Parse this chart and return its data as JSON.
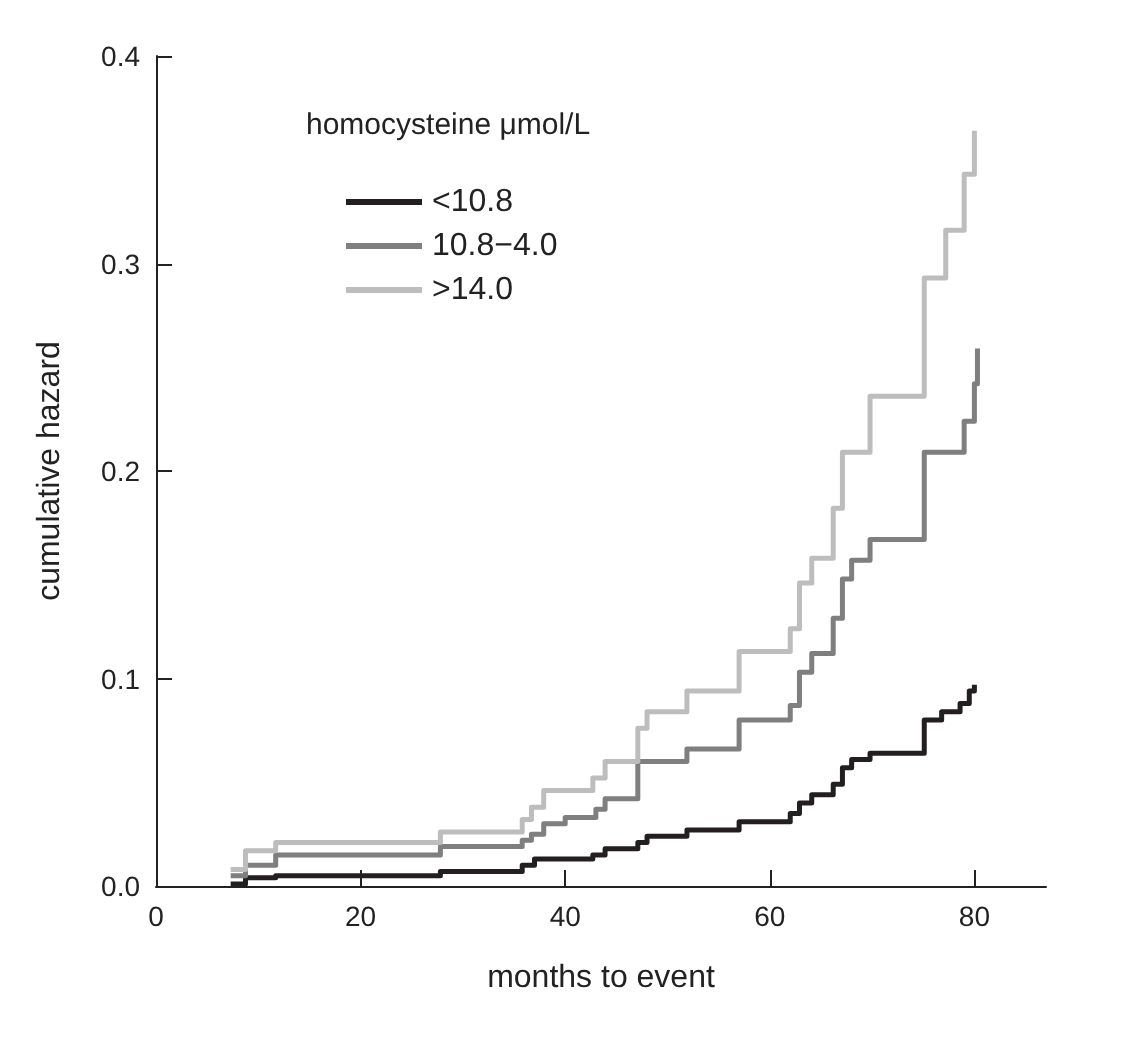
{
  "chart_data": {
    "type": "step",
    "xlabel": "months to event",
    "ylabel": "cumulative hazard",
    "legend_title": "homocysteine μmol/L",
    "legend": "top left",
    "grid": false,
    "xlim": [
      0,
      87
    ],
    "xticks": [
      0,
      20,
      40,
      60,
      80
    ],
    "ylim": [
      0,
      0.4
    ],
    "yticks": [
      {
        "value": 0,
        "label": "0.0"
      },
      0.1,
      0.2,
      0.3,
      0.4
    ],
    "series": [
      {
        "name": "<10.8",
        "color": "#231f20",
        "x": [
          7.3,
          8.75,
          11.7,
          27.8,
          35.8,
          37,
          42.7,
          43.9,
          47.1,
          48,
          51.9,
          57,
          62,
          62.9,
          64.1,
          66.2,
          67.1,
          68,
          69.8,
          75.1,
          76.8,
          78.6,
          79.5,
          80
        ],
        "values": [
          0.001,
          0.004,
          0.005,
          0.007,
          0.01,
          0.013,
          0.015,
          0.018,
          0.021,
          0.024,
          0.027,
          0.031,
          0.035,
          0.04,
          0.044,
          0.049,
          0.057,
          0.061,
          0.064,
          0.08,
          0.084,
          0.088,
          0.094,
          0.097
        ]
      },
      {
        "name": "10.8−4.0",
        "color": "#7f7f7f",
        "x": [
          7.3,
          8.75,
          11.7,
          27.8,
          35.8,
          36.7,
          37.9,
          40,
          43,
          43.9,
          47.1,
          51.9,
          57,
          62,
          62.9,
          64.1,
          66.2,
          67.1,
          68,
          69.8,
          75.1,
          79,
          80,
          80.3
        ],
        "values": [
          0.005,
          0.01,
          0.015,
          0.019,
          0.022,
          0.025,
          0.03,
          0.033,
          0.037,
          0.042,
          0.06,
          0.066,
          0.08,
          0.087,
          0.103,
          0.112,
          0.129,
          0.148,
          0.157,
          0.167,
          0.209,
          0.224,
          0.242,
          0.259
        ]
      },
      {
        "name": ">14.0",
        "color": "#bdbdbd",
        "x": [
          7.3,
          8.75,
          11.7,
          27.8,
          35.8,
          36.7,
          37.9,
          42.7,
          43.9,
          47.1,
          48,
          51.9,
          57,
          62,
          62.9,
          64.1,
          66.2,
          67.1,
          69.8,
          75.1,
          77.2,
          79,
          80
        ],
        "values": [
          0.008,
          0.017,
          0.021,
          0.026,
          0.032,
          0.038,
          0.046,
          0.052,
          0.06,
          0.076,
          0.084,
          0.094,
          0.113,
          0.124,
          0.146,
          0.158,
          0.182,
          0.209,
          0.236,
          0.293,
          0.316,
          0.343,
          0.364
        ]
      }
    ]
  }
}
